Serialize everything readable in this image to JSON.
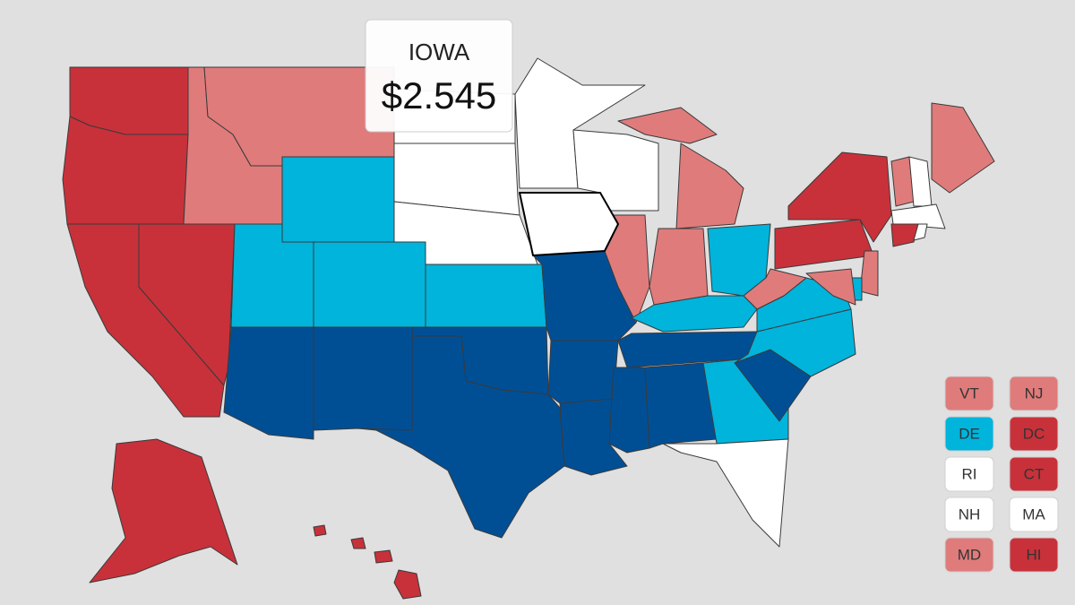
{
  "tooltip": {
    "title": "IOWA",
    "value": "$2.545"
  },
  "legend": [
    {
      "label": "VT",
      "color": "#e07b7b"
    },
    {
      "label": "NJ",
      "color": "#e07b7b"
    },
    {
      "label": "DE",
      "color": "#00b4dc"
    },
    {
      "label": "DC",
      "color": "#c8313a"
    },
    {
      "label": "RI",
      "color": "#ffffff"
    },
    {
      "label": "CT",
      "color": "#c8313a"
    },
    {
      "label": "NH",
      "color": "#ffffff"
    },
    {
      "label": "MA",
      "color": "#ffffff"
    },
    {
      "label": "MD",
      "color": "#e07b7b"
    },
    {
      "label": "HI",
      "color": "#c8313a"
    }
  ]
}
